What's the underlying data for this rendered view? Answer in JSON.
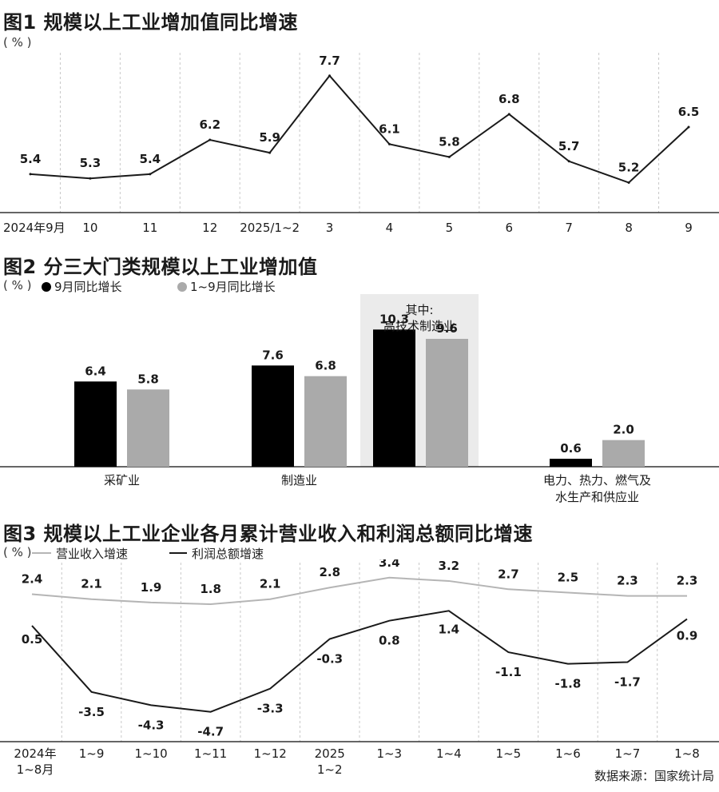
{
  "source": "数据来源：国家统计局",
  "chart_data": [
    {
      "type": "line",
      "title": "图1 规模以上工业增加值同比增速",
      "unit": "( % )",
      "categories": [
        "2024年9月",
        "10",
        "11",
        "12",
        "2025/1~2",
        "3",
        "4",
        "5",
        "6",
        "7",
        "8",
        "9"
      ],
      "values": [
        5.4,
        5.3,
        5.4,
        6.2,
        5.9,
        7.7,
        6.1,
        5.8,
        6.8,
        5.7,
        5.2,
        6.5
      ],
      "labels": [
        "5.4",
        "5.3",
        "5.4",
        "6.2",
        "5.9",
        "7.7",
        "6.1",
        "5.8",
        "6.8",
        "5.7",
        "5.2",
        "6.5"
      ],
      "ylim": [
        4.5,
        8.2
      ],
      "grid": "vertical dashed",
      "color": "#1a1a1a"
    },
    {
      "type": "bar",
      "title": "图2 分三大门类规模以上工业增加值",
      "unit": "( % )",
      "groups": [
        {
          "label": [
            "采矿业"
          ],
          "values": [
            6.4,
            5.8
          ],
          "labels": [
            "6.4",
            "5.8"
          ]
        },
        {
          "label": [
            "制造业"
          ],
          "values": [
            7.6,
            6.8
          ],
          "labels": [
            "7.6",
            "6.8"
          ]
        },
        {
          "label": [],
          "values": [
            10.3,
            9.6
          ],
          "labels": [
            "10.3",
            "9.6"
          ],
          "highlight": [
            "其中:",
            "高技术制造业"
          ]
        },
        {
          "label": [
            "电力、热力、燃气及",
            "水生产和供应业"
          ],
          "values": [
            0.6,
            2.0
          ],
          "labels": [
            "0.6",
            "2.0"
          ]
        }
      ],
      "series": [
        {
          "name": "9月同比增长",
          "color": "#000000"
        },
        {
          "name": "1~9月同比增长",
          "color": "#aaaaaa"
        }
      ],
      "ylim": [
        0,
        12
      ],
      "highlight_color": "#ebebeb"
    },
    {
      "type": "line",
      "title": "图3 规模以上工业企业各月累计营业收入和利润总额同比增速",
      "unit": "( % )",
      "categories": [
        [
          "2024年",
          "1~8月"
        ],
        [
          "1~9"
        ],
        [
          "1~10"
        ],
        [
          "1~11"
        ],
        [
          "1~12"
        ],
        [
          "2025",
          "1~2"
        ],
        [
          "1~3"
        ],
        [
          "1~4"
        ],
        [
          "1~5"
        ],
        [
          "1~6"
        ],
        [
          "1~7"
        ],
        [
          "1~8"
        ]
      ],
      "series": [
        {
          "name": "营业收入增速",
          "color": "#b5b5b5",
          "values": [
            2.4,
            2.1,
            1.9,
            1.8,
            2.1,
            2.8,
            3.4,
            3.2,
            2.7,
            2.5,
            2.3,
            2.3
          ],
          "labels": [
            "2.4",
            "2.1",
            "1.9",
            "1.8",
            "2.1",
            "2.8",
            "3.4",
            "3.2",
            "2.7",
            "2.5",
            "2.3",
            "2.3"
          ]
        },
        {
          "name": "利润总额增速",
          "color": "#1a1a1a",
          "values": [
            0.5,
            -3.5,
            -4.3,
            -4.7,
            -3.3,
            -0.3,
            0.8,
            1.4,
            -1.1,
            -1.8,
            -1.7,
            0.9
          ],
          "labels": [
            "0.5",
            "-3.5",
            "-4.3",
            "-4.7",
            "-3.3",
            "-0.3",
            "0.8",
            "1.4",
            "-1.1",
            "-1.8",
            "-1.7",
            "0.9"
          ]
        }
      ],
      "ylim": [
        -6.5,
        4.5
      ],
      "grid": "vertical dashed"
    }
  ]
}
